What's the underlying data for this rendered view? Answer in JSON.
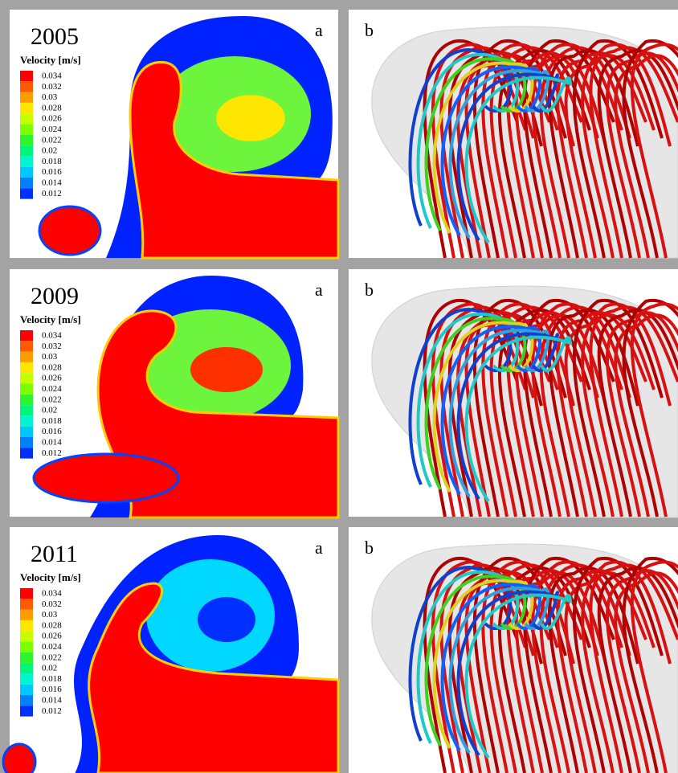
{
  "rows": [
    {
      "year": "2005",
      "panel_a": "a",
      "legend_title": "Velocity [m/s]",
      "legend_labels": [
        "0.034",
        "0.032",
        "0.03",
        "0.028",
        "0.026",
        "0.024",
        "0.022",
        "0.02",
        "0.018",
        "0.016",
        "0.014",
        "0.012"
      ],
      "panel_b": "b"
    },
    {
      "year": "2009",
      "panel_a": "a",
      "legend_title": "Velocity [m/s]",
      "legend_labels": [
        "0.034",
        "0.032",
        "0.03",
        "0.028",
        "0.026",
        "0.024",
        "0.022",
        "0.02",
        "0.018",
        "0.016",
        "0.014",
        "0.012"
      ],
      "panel_b": "b"
    },
    {
      "year": "2011",
      "panel_a": "a",
      "legend_title": "Velocity [m/s]",
      "legend_labels": [
        "0.034",
        "0.032",
        "0.03",
        "0.028",
        "0.026",
        "0.024",
        "0.022",
        "0.02",
        "0.018",
        "0.016",
        "0.014",
        "0.012"
      ],
      "panel_b": "b"
    }
  ]
}
